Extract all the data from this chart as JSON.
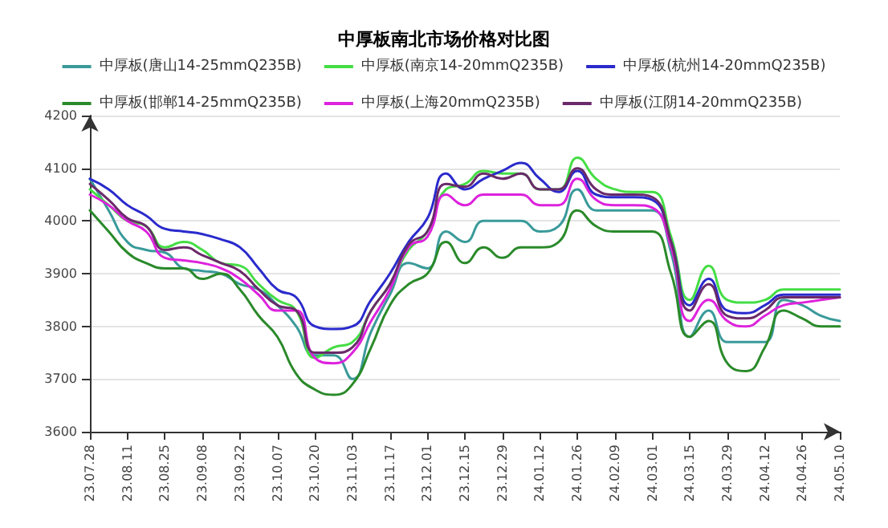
{
  "chart_data": {
    "type": "line",
    "title": "中厚板南北市场价格对比图",
    "categories": [
      "23.07.28",
      null,
      "23.08.11",
      null,
      "23.08.25",
      null,
      "23.09.08",
      null,
      "23.09.22",
      null,
      "23.10.07",
      null,
      "23.10.20",
      null,
      "23.11.03",
      null,
      "23.11.17",
      null,
      "23.12.01",
      null,
      "23.12.15",
      null,
      "23.12.29",
      null,
      "24.01.12",
      null,
      "24.01.26",
      null,
      "24.02.09",
      null,
      "24.03.01",
      null,
      "24.03.15",
      null,
      "24.03.29",
      null,
      "24.04.12",
      null,
      "24.04.26",
      null,
      "24.05.10"
    ],
    "series": [
      {
        "name": "中厚板(唐山14-25mmQ235B)",
        "color": "#3a9a9a",
        "values": [
          4080,
          4020,
          3960,
          3945,
          3940,
          3910,
          3905,
          3900,
          3880,
          3870,
          3840,
          3800,
          3745,
          3745,
          3700,
          3790,
          3860,
          3920,
          3910,
          3980,
          3960,
          4000,
          4000,
          4000,
          3980,
          3990,
          4060,
          4020,
          4020,
          4020,
          4020,
          3940,
          3780,
          3830,
          3770,
          3770,
          3770,
          3850,
          3840,
          3820,
          3810
        ]
      },
      {
        "name": "中厚板(南京14-20mmQ235B)",
        "color": "#44dd44",
        "values": [
          4060,
          4030,
          4000,
          3990,
          3950,
          3960,
          3945,
          3920,
          3915,
          3880,
          3850,
          3830,
          3740,
          3760,
          3770,
          3830,
          3880,
          3945,
          3980,
          4060,
          4070,
          4095,
          4090,
          4090,
          4060,
          4060,
          4120,
          4080,
          4060,
          4055,
          4055,
          3970,
          3850,
          3915,
          3850,
          3845,
          3850,
          3870,
          3870,
          3870,
          3870
        ]
      },
      {
        "name": "中厚板(杭州14-20mmQ235B)",
        "color": "#2a2acc",
        "values": [
          4080,
          4060,
          4030,
          4010,
          3985,
          3980,
          3975,
          3965,
          3950,
          3910,
          3870,
          3855,
          3800,
          3795,
          3800,
          3850,
          3900,
          3960,
          4005,
          4090,
          4060,
          4080,
          4095,
          4110,
          4080,
          4055,
          4095,
          4050,
          4045,
          4045,
          4040,
          3960,
          3840,
          3890,
          3830,
          3825,
          3840,
          3860,
          3860,
          3860,
          3860
        ]
      },
      {
        "name": "中厚板(邯郸14-25mmQ235B)",
        "color": "#2a8a2a",
        "values": [
          4020,
          3980,
          3940,
          3920,
          3910,
          3910,
          3890,
          3900,
          3870,
          3820,
          3780,
          3710,
          3680,
          3670,
          3690,
          3760,
          3840,
          3880,
          3900,
          3960,
          3920,
          3950,
          3930,
          3950,
          3950,
          3960,
          4020,
          3990,
          3980,
          3980,
          3980,
          3900,
          3780,
          3810,
          3730,
          3715,
          3760,
          3830,
          3815,
          3800,
          3800
        ]
      },
      {
        "name": "中厚板(上海20mmQ235B)",
        "color": "#dd22dd",
        "values": [
          4050,
          4030,
          4000,
          3980,
          3930,
          3925,
          3920,
          3910,
          3890,
          3860,
          3830,
          3830,
          3740,
          3730,
          3750,
          3810,
          3870,
          3950,
          3970,
          4050,
          4030,
          4050,
          4050,
          4050,
          4030,
          4030,
          4080,
          4040,
          4030,
          4030,
          4025,
          3950,
          3810,
          3850,
          3810,
          3800,
          3820,
          3840,
          3845,
          3850,
          3855
        ]
      },
      {
        "name": "中厚板(江阴14-20mmQ235B)",
        "color": "#6a2a6a",
        "values": [
          4070,
          4040,
          4005,
          3990,
          3945,
          3950,
          3935,
          3920,
          3905,
          3870,
          3840,
          3830,
          3750,
          3750,
          3760,
          3830,
          3880,
          3955,
          3980,
          4070,
          4065,
          4090,
          4080,
          4090,
          4060,
          4060,
          4100,
          4060,
          4050,
          4050,
          4045,
          3960,
          3830,
          3880,
          3820,
          3815,
          3830,
          3855,
          3855,
          3855,
          3855
        ]
      }
    ],
    "ylim": [
      3600,
      4200
    ],
    "yticks": [
      3600,
      3700,
      3800,
      3900,
      4000,
      4100,
      4200
    ],
    "grid": "y",
    "legend": "top",
    "marker": "none",
    "line_style": "solid"
  }
}
